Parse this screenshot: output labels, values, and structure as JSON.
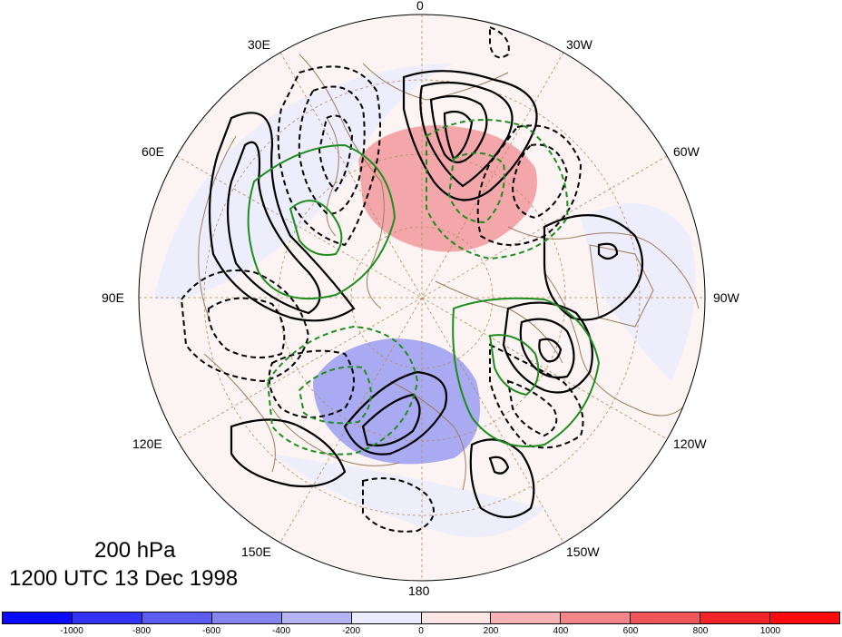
{
  "map": {
    "projection": "polar-stereographic-north",
    "pressure_level": "200 hPa",
    "valid_time": "1200 UTC 13 Dec 1998",
    "longitude_labels": {
      "lon_0": "0",
      "lon_30w": "30W",
      "lon_60w": "60W",
      "lon_90w": "90W",
      "lon_120w": "120W",
      "lon_150w": "150W",
      "lon_180": "180",
      "lon_150e": "150E",
      "lon_120e": "120E",
      "lon_90e": "90E",
      "lon_60e": "60E",
      "lon_30e": "30E"
    },
    "contour_styles": {
      "positive": "solid black",
      "negative": "dashed black",
      "highlight": "green"
    }
  },
  "colorbar": {
    "labels": [
      "-1000",
      "-800",
      "-600",
      "-400",
      "-200",
      "0",
      "200",
      "400",
      "600",
      "800",
      "1000"
    ],
    "colors": [
      "#0a0aff",
      "#3333f5",
      "#5c5cf0",
      "#8585ee",
      "#b3b3f5",
      "#ebebfd",
      "#fde6e6",
      "#f7b3b6",
      "#f38589",
      "#ef5559",
      "#f22427",
      "#ff0a0a"
    ]
  },
  "colors": {
    "coastline": "#9a7d5e",
    "grid": "#b08a60",
    "shade_positive": "#f4a7ab",
    "shade_negative": "#aaaaf2",
    "contour_green": "#1e8c1e"
  }
}
